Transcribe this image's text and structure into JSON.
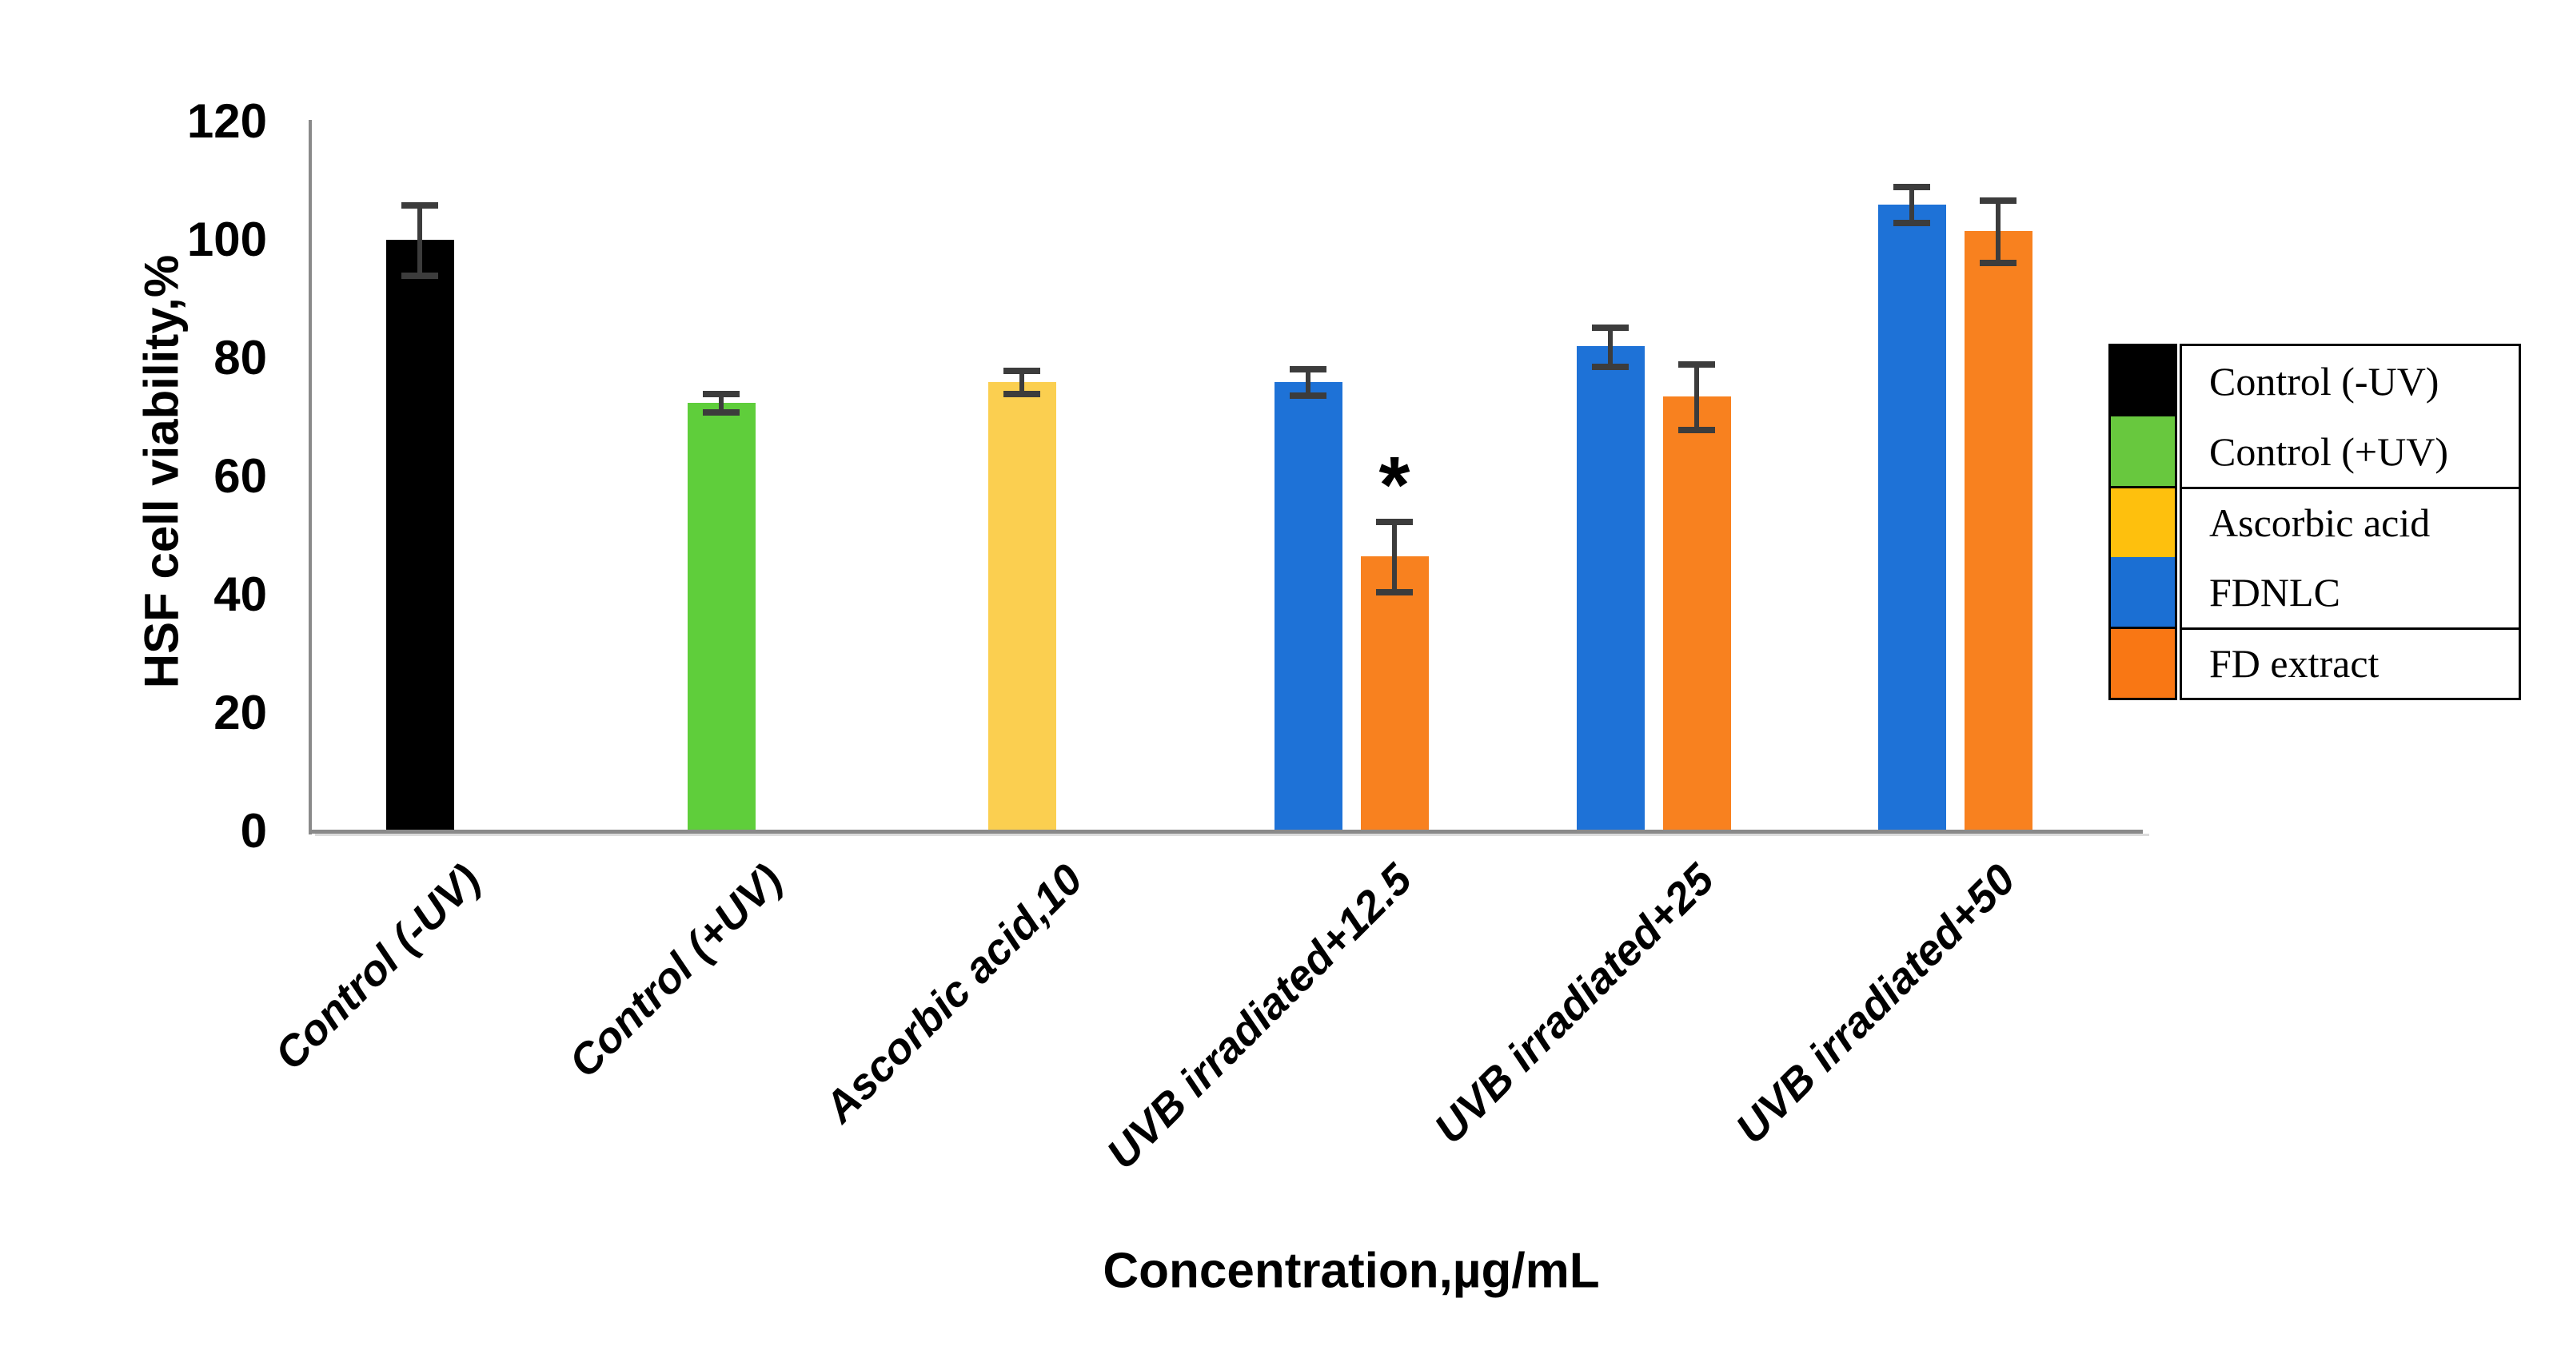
{
  "chart_data": {
    "type": "bar",
    "title": "",
    "xlabel": "Concentration,µg/mL",
    "ylabel": "HSF cell viability,%",
    "ylim": [
      0,
      120
    ],
    "yticks": [
      0,
      20,
      40,
      60,
      80,
      100,
      120
    ],
    "grid": false,
    "legend_position": "right",
    "categories": [
      "Control (-UV)",
      "Control (+UV)",
      "Ascorbic acid,10",
      "UVB irradiated+12.5",
      "UVB irradiated+25",
      "UVB irradiated+50"
    ],
    "series": [
      {
        "name": "Control (-UV)",
        "bar_color": "#000000",
        "legend_color": "#000000",
        "values": [
          100,
          null,
          null,
          null,
          null,
          null
        ],
        "errors": [
          6,
          null,
          null,
          null,
          null,
          null
        ]
      },
      {
        "name": "Control (+UV)",
        "bar_color": "#5fce3b",
        "legend_color": "#68c83e",
        "values": [
          null,
          72.5,
          null,
          null,
          null,
          null
        ],
        "errors": [
          null,
          1.5,
          null,
          null,
          null,
          null
        ]
      },
      {
        "name": "Ascorbic acid",
        "bar_color": "#fbcf50",
        "legend_color": "#fec00d",
        "values": [
          null,
          null,
          76,
          null,
          null,
          null
        ],
        "errors": [
          null,
          null,
          2,
          null,
          null,
          null
        ]
      },
      {
        "name": "FDNLC",
        "bar_color": "#1e72d7",
        "legend_color": "#1b6fd3",
        "values": [
          null,
          null,
          null,
          76,
          82,
          106
        ],
        "errors": [
          null,
          null,
          null,
          2.2,
          3.3,
          3
        ]
      },
      {
        "name": "FD extract",
        "bar_color": "#f8811f",
        "legend_color": "#f97714",
        "values": [
          null,
          null,
          null,
          46.5,
          73.5,
          101.5
        ],
        "errors": [
          null,
          null,
          null,
          6,
          5.5,
          5.3
        ]
      }
    ],
    "annotations": [
      {
        "text": "*",
        "category": "UVB irradiated+12.5",
        "series": "FD extract"
      }
    ],
    "legend": {
      "labels": [
        "Control (-UV)",
        "Control (+UV)",
        "Ascorbic acid",
        "FDNLC",
        "FD extract"
      ],
      "section_breaks_after": [
        1,
        3
      ]
    },
    "error_bar_color": "#3c3c3c",
    "axis_line_color": "#8a8a8a"
  }
}
